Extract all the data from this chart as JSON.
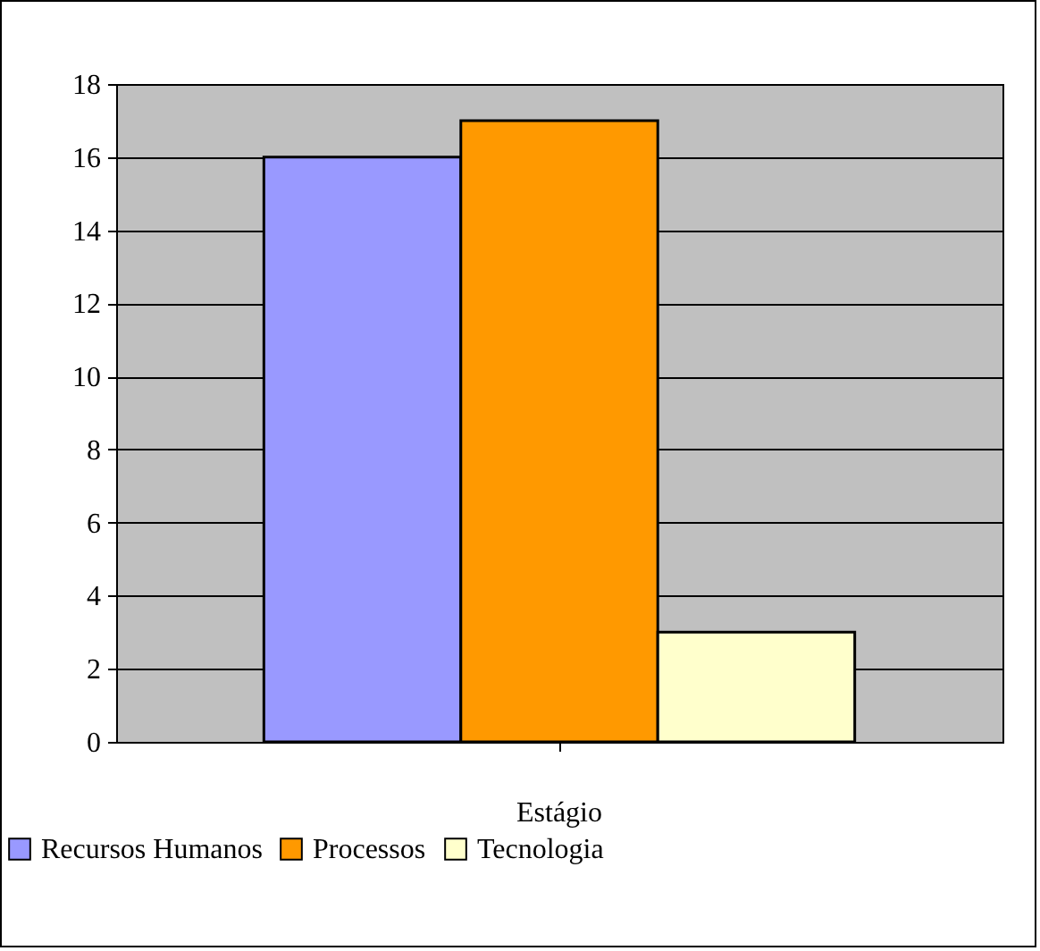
{
  "chart_data": {
    "type": "bar",
    "categories": [
      "Estágio"
    ],
    "series": [
      {
        "name": "Recursos Humanos",
        "color": "#9999ff",
        "values": [
          16
        ]
      },
      {
        "name": "Processos",
        "color": "#ff9900",
        "values": [
          17
        ]
      },
      {
        "name": "Tecnologia",
        "color": "#ffffcc",
        "values": [
          3
        ]
      }
    ],
    "ylim": [
      0,
      18
    ],
    "yticks": [
      0,
      2,
      4,
      6,
      8,
      10,
      12,
      14,
      16,
      18
    ],
    "grid": "y",
    "legend": "bottom"
  }
}
